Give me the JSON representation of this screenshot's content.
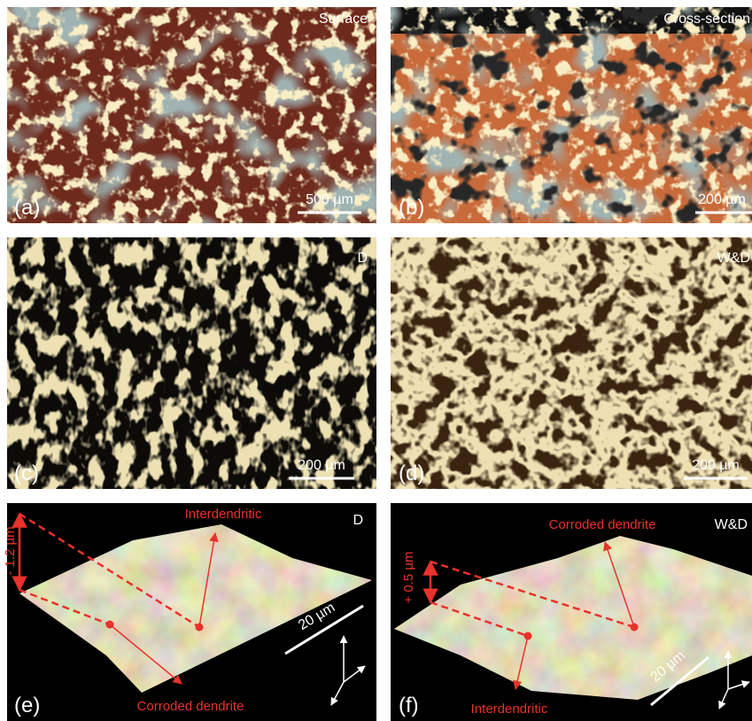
{
  "panels": [
    {
      "label": "(a)",
      "title": "Surface",
      "scale_bar": "500 µm"
    },
    {
      "label": "(b)",
      "title": "Cross-section",
      "scale_bar": "200 µm"
    },
    {
      "label": "(c)",
      "title": "D",
      "scale_bar": "200 µm"
    },
    {
      "label": "(d)",
      "title": "W&D",
      "scale_bar": "200 µm"
    },
    {
      "label": "(e)",
      "title": "D",
      "scale_bar": "20 µm",
      "height_label": "- 1.2 µm",
      "annotations": [
        "Interdendritic",
        "Corroded dendrite"
      ]
    },
    {
      "label": "(f)",
      "title": "W&D",
      "scale_bar": "20 µm",
      "height_label": "+ 0.5 µm",
      "annotations": [
        "Corroded dendrite",
        "Interdendritic"
      ]
    }
  ]
}
